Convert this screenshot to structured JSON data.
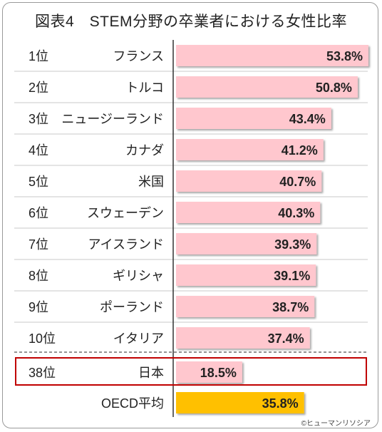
{
  "title": "図表4　STEM分野の卒業者における女性比率",
  "copyright": "©ヒューマンリソシア",
  "colors": {
    "bar": "#ffc7ce",
    "bar_highlight": "#ffc000",
    "highlight_border": "#c00000",
    "divider": "#555555"
  },
  "chart_data": {
    "type": "bar",
    "orientation": "horizontal",
    "unit": "%",
    "xlim": [
      0,
      60
    ],
    "grid": false,
    "rows": [
      {
        "rank": "1位",
        "country": "フランス",
        "value": 53.8,
        "label": "53.8%"
      },
      {
        "rank": "2位",
        "country": "トルコ",
        "value": 50.8,
        "label": "50.8%"
      },
      {
        "rank": "3位",
        "country": "ニュージーランド",
        "value": 43.4,
        "label": "43.4%"
      },
      {
        "rank": "4位",
        "country": "カナダ",
        "value": 41.2,
        "label": "41.2%"
      },
      {
        "rank": "5位",
        "country": "米国",
        "value": 40.7,
        "label": "40.7%"
      },
      {
        "rank": "6位",
        "country": "スウェーデン",
        "value": 40.3,
        "label": "40.3%"
      },
      {
        "rank": "7位",
        "country": "アイスランド",
        "value": 39.3,
        "label": "39.3%"
      },
      {
        "rank": "8位",
        "country": "ギリシャ",
        "value": 39.1,
        "label": "39.1%"
      },
      {
        "rank": "9位",
        "country": "ポーランド",
        "value": 38.7,
        "label": "38.7%"
      },
      {
        "rank": "10位",
        "country": "イタリア",
        "value": 37.4,
        "label": "37.4%"
      },
      {
        "rank": "38位",
        "country": "日本",
        "value": 18.5,
        "label": "18.5%",
        "highlight": "boxed"
      },
      {
        "rank": "",
        "country": "OECD平均",
        "value": 35.8,
        "label": "35.8%",
        "highlight": "average"
      }
    ]
  }
}
